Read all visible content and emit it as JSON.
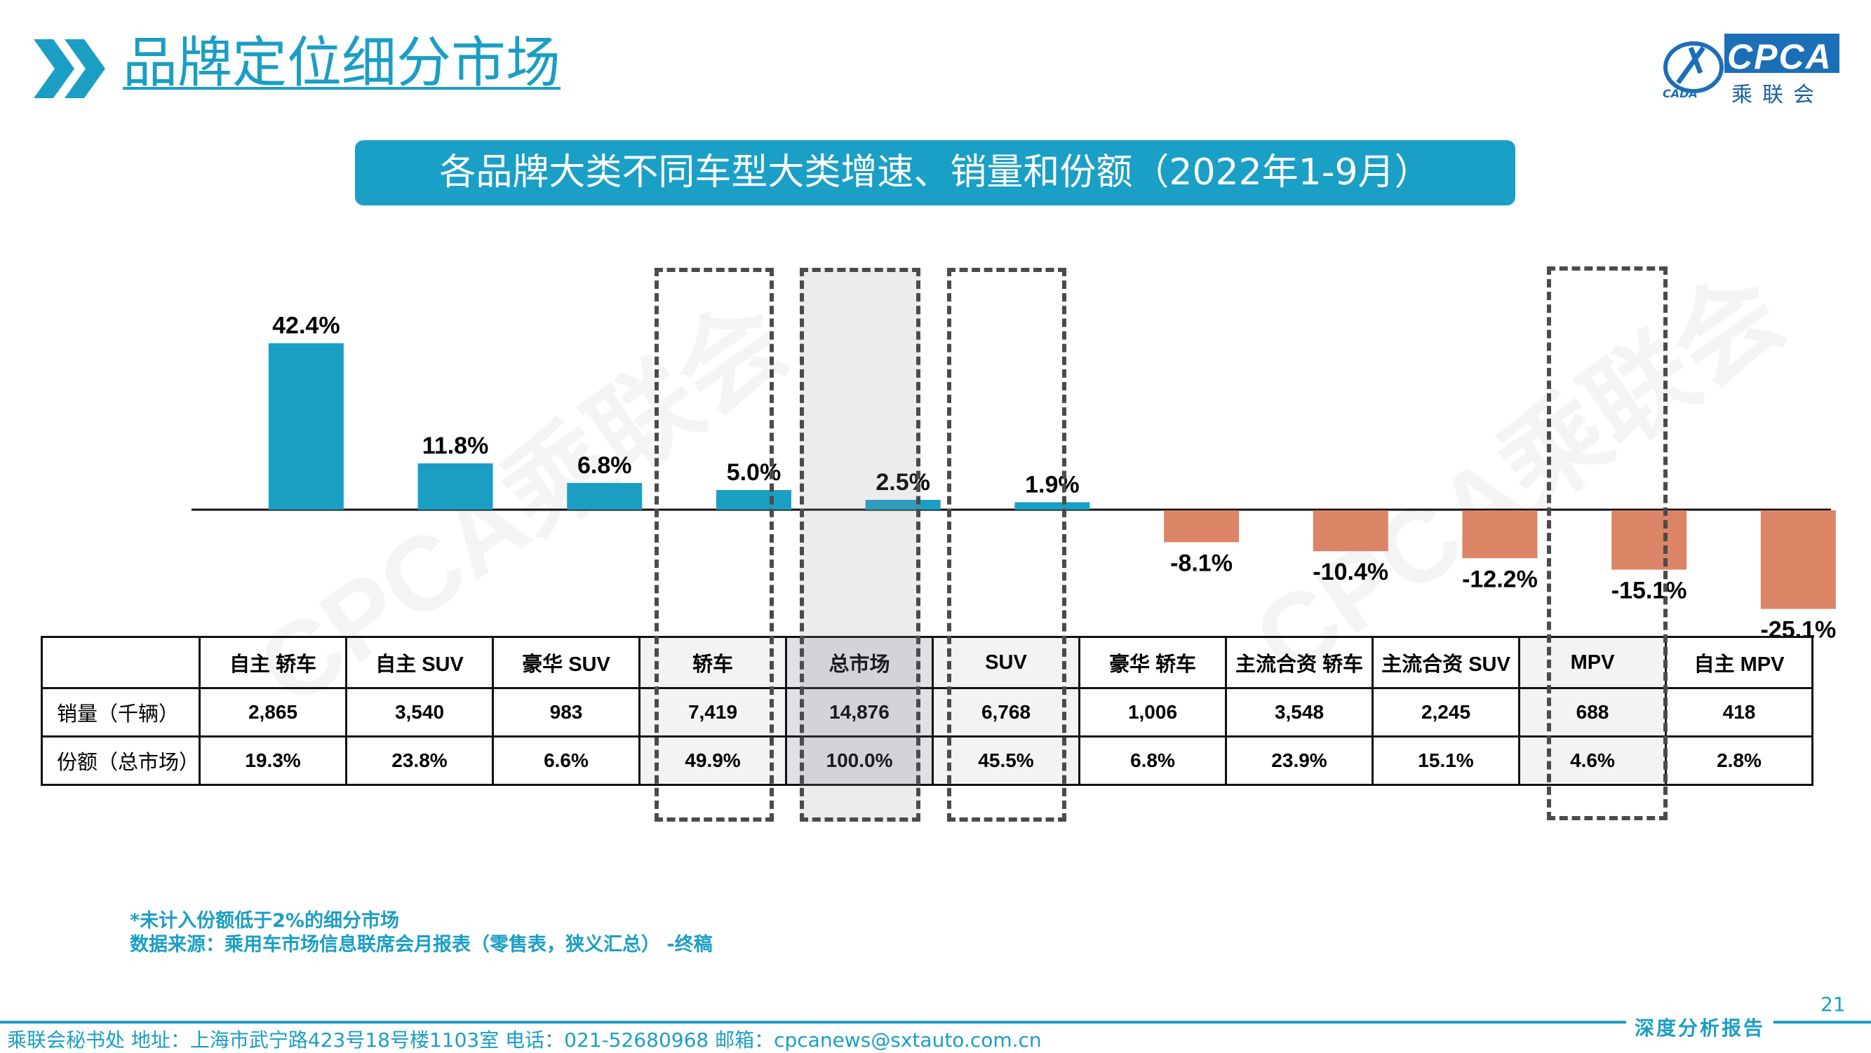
{
  "page_title": "品牌定位细分市场",
  "subtitle": "各品牌大类不同车型大类增速、销量和份额（2022年1-9月）",
  "logo": {
    "text": "CPCA",
    "cn": "乘联会",
    "small": "CADA",
    "watermark": "CPCA乘联会"
  },
  "table": {
    "row_labels": [
      "销量（千辆）",
      "份额（总市场）"
    ]
  },
  "chart_data": {
    "type": "bar",
    "title": "各品牌大类不同车型大类增速、销量和份额（2022年1-9月）",
    "categories": [
      "自主 轿车",
      "自主 SUV",
      "豪华 SUV",
      "轿车",
      "总市场",
      "SUV",
      "豪华 轿车",
      "主流合资 轿车",
      "主流合资 SUV",
      "MPV",
      "自主 MPV"
    ],
    "series": [
      {
        "values": [
          42.4,
          11.8,
          6.8,
          5.0,
          2.5,
          1.9,
          -8.1,
          -10.4,
          -12.2,
          -15.1,
          -25.1
        ]
      }
    ],
    "value_labels": [
      "42.4%",
      "11.8%",
      "6.8%",
      "5.0%",
      "2.5%",
      "1.9%",
      "-8.1%",
      "-10.4%",
      "-12.2%",
      "-15.1%",
      "-25.1%"
    ],
    "sales_thousand": [
      "2,865",
      "3,540",
      "983",
      "7,419",
      "14,876",
      "6,768",
      "1,006",
      "3,548",
      "2,245",
      "688",
      "418"
    ],
    "share": [
      "19.3%",
      "23.8%",
      "6.6%",
      "49.9%",
      "100.0%",
      "45.5%",
      "6.8%",
      "23.9%",
      "15.1%",
      "4.6%",
      "2.8%"
    ],
    "highlighted": [
      "轿车",
      "总市场",
      "SUV",
      "MPV"
    ],
    "positive_color": "#1b9ec4",
    "negative_color": "#dc8566",
    "ylim": [
      -27,
      45
    ]
  },
  "notes": [
    "*未计入份额低于2%的细分市场",
    "数据来源：乘用车市场信息联席会月报表（零售表，狭义汇总） -终稿"
  ],
  "page_number": "21",
  "footer": {
    "text": "乘联会秘书处   地址：上海市武宁路423号18号楼1103室  电话：021-52680968   邮箱：cpcanews@sxtauto.com.cn",
    "tag": "深度分析报告"
  }
}
